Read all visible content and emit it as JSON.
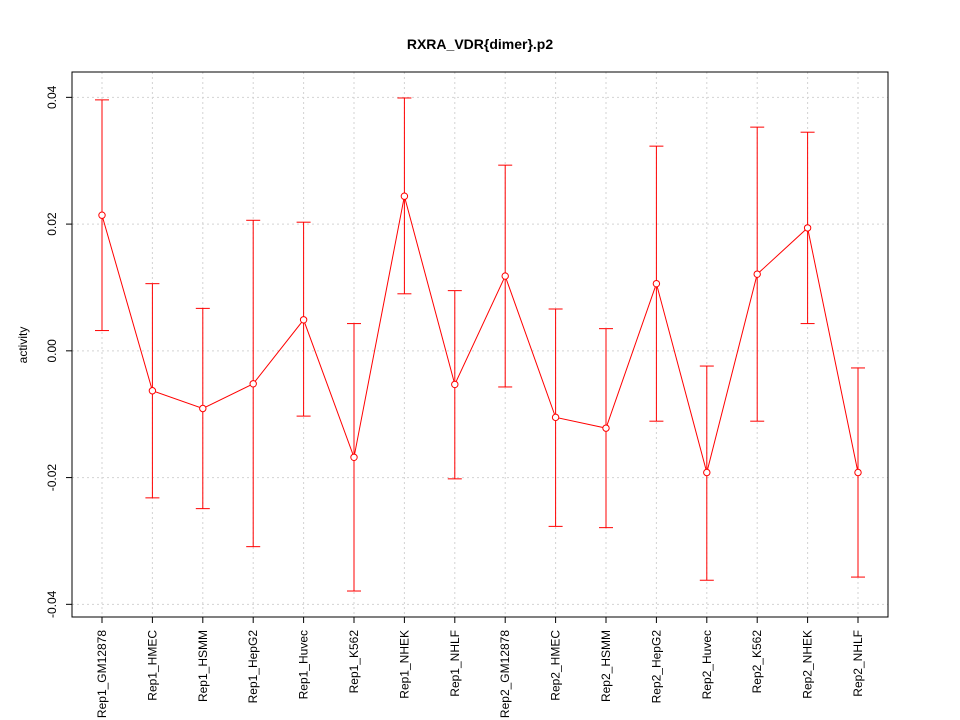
{
  "chart_data": {
    "type": "line",
    "title": "RXRA_VDR{dimer}.p2",
    "xlabel": "",
    "ylabel": "activity",
    "ylim": [
      -0.042,
      0.044
    ],
    "yticks": [
      -0.04,
      -0.02,
      0.0,
      0.02,
      0.04
    ],
    "ytick_labels": [
      "-0.04",
      "-0.02",
      "0.00",
      "0.02",
      "0.04"
    ],
    "grid": true,
    "color": "#ff0000",
    "categories": [
      "Rep1_GM12878",
      "Rep1_HMEC",
      "Rep1_HSMM",
      "Rep1_HepG2",
      "Rep1_Huvec",
      "Rep1_K562",
      "Rep1_NHEK",
      "Rep1_NHLF",
      "Rep2_GM12878",
      "Rep2_HMEC",
      "Rep2_HSMM",
      "Rep2_HepG2",
      "Rep2_Huvec",
      "Rep2_K562",
      "Rep2_NHEK",
      "Rep2_NHLF"
    ],
    "values": [
      0.0214,
      -0.0063,
      -0.0091,
      -0.0052,
      0.0049,
      -0.0168,
      0.0244,
      -0.0053,
      0.0118,
      -0.0105,
      -0.0122,
      0.0106,
      -0.0192,
      0.0121,
      0.0194,
      -0.0192
    ],
    "upper": [
      0.0396,
      0.0106,
      0.0067,
      0.0206,
      0.0203,
      0.0043,
      0.0399,
      0.0095,
      0.0293,
      0.0066,
      0.0035,
      0.0323,
      -0.0024,
      0.0353,
      0.0345,
      -0.0027
    ],
    "lower": [
      0.0032,
      -0.0232,
      -0.0249,
      -0.0309,
      -0.0103,
      -0.0379,
      0.009,
      -0.0202,
      -0.0057,
      -0.0277,
      -0.0279,
      -0.0111,
      -0.0362,
      -0.0111,
      0.0043,
      -0.0357
    ]
  }
}
